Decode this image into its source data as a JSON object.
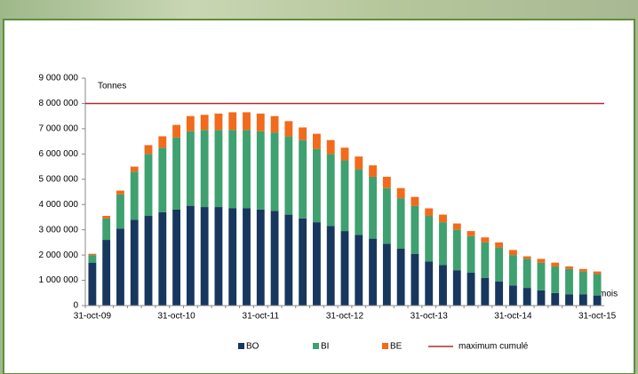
{
  "chart_data": {
    "type": "stacked_bar",
    "y_annotation": "Tonnes",
    "x_label": "mois",
    "categories": [
      "31-oct-09",
      null,
      null,
      null,
      null,
      null,
      "31-oct-10",
      null,
      null,
      null,
      null,
      null,
      "31-oct-11",
      null,
      null,
      null,
      null,
      null,
      "31-oct-12",
      null,
      null,
      null,
      null,
      null,
      "31-oct-13",
      null,
      null,
      null,
      null,
      null,
      "31-oct-14",
      null,
      null,
      null,
      null,
      null,
      "31-oct-15"
    ],
    "series": [
      {
        "name": "BO",
        "color": "#17375e",
        "values": [
          1700000,
          2600000,
          3050000,
          3400000,
          3550000,
          3700000,
          3800000,
          3950000,
          3900000,
          3900000,
          3850000,
          3850000,
          3800000,
          3750000,
          3600000,
          3450000,
          3300000,
          3150000,
          2950000,
          2800000,
          2650000,
          2450000,
          2250000,
          2050000,
          1750000,
          1600000,
          1400000,
          1300000,
          1100000,
          950000,
          800000,
          700000,
          600000,
          500000,
          450000,
          450000,
          400000
        ]
      },
      {
        "name": "BI",
        "color": "#3fa070",
        "values": [
          300000,
          850000,
          1350000,
          1900000,
          2450000,
          2550000,
          2850000,
          2950000,
          3050000,
          3050000,
          3100000,
          3100000,
          3100000,
          3100000,
          3100000,
          3100000,
          2900000,
          2850000,
          2800000,
          2600000,
          2450000,
          2200000,
          2000000,
          1900000,
          1800000,
          1700000,
          1600000,
          1450000,
          1400000,
          1350000,
          1200000,
          1150000,
          1100000,
          1050000,
          1000000,
          900000,
          850000
        ]
      },
      {
        "name": "BE",
        "color": "#f26a1b",
        "values": [
          50000,
          100000,
          150000,
          200000,
          350000,
          450000,
          500000,
          600000,
          600000,
          650000,
          700000,
          700000,
          700000,
          650000,
          600000,
          500000,
          600000,
          550000,
          500000,
          500000,
          450000,
          450000,
          400000,
          350000,
          300000,
          300000,
          250000,
          200000,
          200000,
          200000,
          200000,
          100000,
          150000,
          150000,
          100000,
          100000,
          100000
        ]
      }
    ],
    "max_line": {
      "name": "maximum cumulé",
      "value": 8000000,
      "color": "#b22a2a"
    },
    "ylim": [
      0,
      9000000
    ],
    "yticks": [
      0,
      {
        "value": 1000000,
        "label": "1 000 000"
      },
      {
        "value": 2000000,
        "label": "2 000 000"
      },
      {
        "value": 3000000,
        "label": "3 000 000"
      },
      {
        "value": 4000000,
        "label": "4 000 000"
      },
      {
        "value": 5000000,
        "label": "5 000 000"
      },
      {
        "value": 6000000,
        "label": "6 000 000"
      },
      {
        "value": 7000000,
        "label": "7 000 000"
      },
      {
        "value": 8000000,
        "label": "8 000 000"
      },
      {
        "value": 9000000,
        "label": "9 000 000"
      }
    ]
  }
}
